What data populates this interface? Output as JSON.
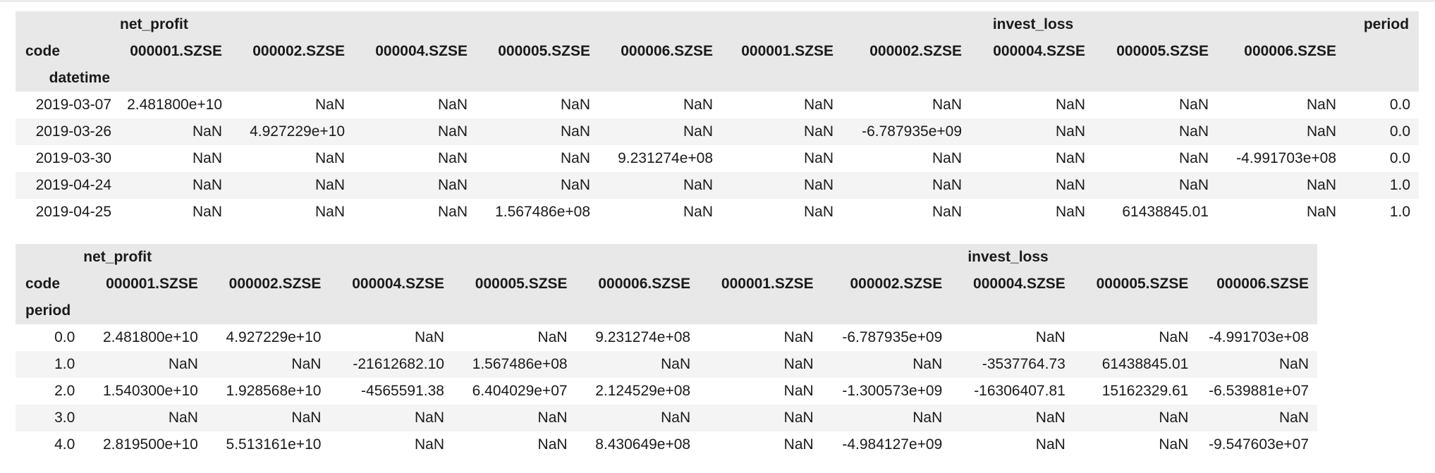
{
  "table1": {
    "group_labels": {
      "net_profit": "net_profit",
      "invest_loss": "invest_loss",
      "period": "period"
    },
    "code_label": "code",
    "index_label": "datetime",
    "columns": [
      "000001.SZSE",
      "000002.SZSE",
      "000004.SZSE",
      "000005.SZSE",
      "000006.SZSE",
      "000001.SZSE",
      "000002.SZSE",
      "000004.SZSE",
      "000005.SZSE",
      "000006.SZSE"
    ],
    "rows": [
      {
        "index": "2019-03-07",
        "values": [
          "2.481800e+10",
          "NaN",
          "NaN",
          "NaN",
          "NaN",
          "NaN",
          "NaN",
          "NaN",
          "NaN",
          "NaN",
          "0.0"
        ]
      },
      {
        "index": "2019-03-26",
        "values": [
          "NaN",
          "4.927229e+10",
          "NaN",
          "NaN",
          "NaN",
          "NaN",
          "-6.787935e+09",
          "NaN",
          "NaN",
          "NaN",
          "0.0"
        ]
      },
      {
        "index": "2019-03-30",
        "values": [
          "NaN",
          "NaN",
          "NaN",
          "NaN",
          "9.231274e+08",
          "NaN",
          "NaN",
          "NaN",
          "NaN",
          "-4.991703e+08",
          "0.0"
        ]
      },
      {
        "index": "2019-04-24",
        "values": [
          "NaN",
          "NaN",
          "NaN",
          "NaN",
          "NaN",
          "NaN",
          "NaN",
          "NaN",
          "NaN",
          "NaN",
          "1.0"
        ]
      },
      {
        "index": "2019-04-25",
        "values": [
          "NaN",
          "NaN",
          "NaN",
          "1.567486e+08",
          "NaN",
          "NaN",
          "NaN",
          "NaN",
          "61438845.01",
          "NaN",
          "1.0"
        ]
      }
    ]
  },
  "table2": {
    "group_labels": {
      "net_profit": "net_profit",
      "invest_loss": "invest_loss"
    },
    "code_label": "code",
    "index_label": "period",
    "columns": [
      "000001.SZSE",
      "000002.SZSE",
      "000004.SZSE",
      "000005.SZSE",
      "000006.SZSE",
      "000001.SZSE",
      "000002.SZSE",
      "000004.SZSE",
      "000005.SZSE",
      "000006.SZSE"
    ],
    "rows": [
      {
        "index": "0.0",
        "values": [
          "2.481800e+10",
          "4.927229e+10",
          "NaN",
          "NaN",
          "9.231274e+08",
          "NaN",
          "-6.787935e+09",
          "NaN",
          "NaN",
          "-4.991703e+08"
        ]
      },
      {
        "index": "1.0",
        "values": [
          "NaN",
          "NaN",
          "-21612682.10",
          "1.567486e+08",
          "NaN",
          "NaN",
          "NaN",
          "-3537764.73",
          "61438845.01",
          "NaN"
        ]
      },
      {
        "index": "2.0",
        "values": [
          "1.540300e+10",
          "1.928568e+10",
          "-4565591.38",
          "6.404029e+07",
          "2.124529e+08",
          "NaN",
          "-1.300573e+09",
          "-16306407.81",
          "15162329.61",
          "-6.539881e+07"
        ]
      },
      {
        "index": "3.0",
        "values": [
          "NaN",
          "NaN",
          "NaN",
          "NaN",
          "NaN",
          "NaN",
          "NaN",
          "NaN",
          "NaN",
          "NaN"
        ]
      },
      {
        "index": "4.0",
        "values": [
          "2.819500e+10",
          "5.513161e+10",
          "NaN",
          "NaN",
          "8.430649e+08",
          "NaN",
          "-4.984127e+09",
          "NaN",
          "NaN",
          "-9.547603e+07"
        ]
      }
    ]
  }
}
